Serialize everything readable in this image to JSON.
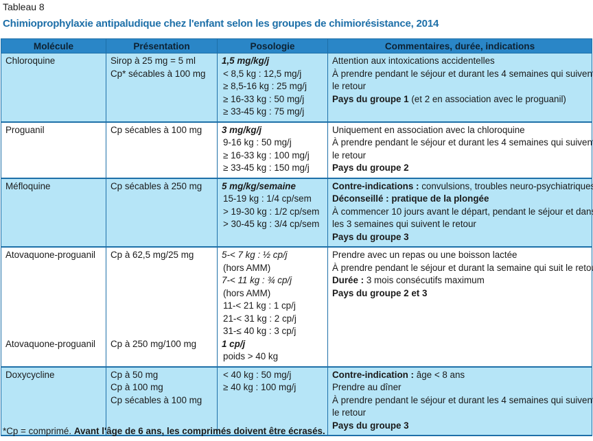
{
  "caption": "Tableau 8",
  "title": "Chimioprophylaxie antipaludique chez l'enfant selon les groupes de chimiorésistance, 2014",
  "headers": [
    "Molécule",
    "Présentation",
    "Posologie",
    "Commentaires, durée, indications"
  ],
  "rows": [
    {
      "molecule": "Chloroquine",
      "presentation": [
        "Sirop à 25 mg = 5 ml",
        "Cp* sécables à 100 mg"
      ],
      "posologie_main": "1,5 mg/kg/j",
      "posologie": [
        "< 8,5 kg : 12,5 mg/j",
        "≥ 8,5-16 kg : 25 mg/j",
        "≥ 16-33 kg : 50 mg/j",
        "≥ 33-45 kg : 75 mg/j"
      ],
      "comments": {
        "c1": "Attention aux intoxications accidentelles",
        "c2": "À prendre pendant le séjour et durant les 4 semaines qui suivent",
        "c3": "le retour",
        "c4_b": "Pays du groupe 1",
        "c4_t": " (et 2 en association avec le proguanil)"
      }
    },
    {
      "molecule": "Proguanil",
      "presentation": [
        "Cp sécables à 100 mg"
      ],
      "posologie_main": "3 mg/kg/j",
      "posologie": [
        "9-16 kg : 50 mg/j",
        "≥ 16-33 kg : 100 mg/j",
        "≥ 33-45 kg : 150 mg/j"
      ],
      "comments": {
        "c1": "Uniquement en association avec la chloroquine",
        "c2": "À prendre pendant le séjour et durant les 4 semaines qui suivent",
        "c3": "le retour",
        "c4_b": "Pays du groupe 2"
      }
    },
    {
      "molecule": "Méfloquine",
      "presentation": [
        "Cp sécables à 250 mg"
      ],
      "posologie_main": "5 mg/kg/semaine",
      "posologie": [
        "15-19 kg : 1/4 cp/sem",
        "> 19-30 kg : 1/2 cp/sem",
        "> 30-45 kg : 3/4 cp/sem"
      ],
      "comments": {
        "c1_b": "Contre-indications :",
        "c1_t": " convulsions, troubles neuro-psychiatriques",
        "c2_b": "Déconseillé : pratique de la plongée",
        "c3": "À commencer 10 jours avant le départ, pendant le séjour et dans",
        "c4": "les 3 semaines qui suivent le retour",
        "c5_b": "Pays du groupe 3"
      }
    },
    {
      "molecule": "Atovaquone-proguanil",
      "molecule2": "Atovaquone-proguanil",
      "presentation": [
        "Cp à 62,5 mg/25 mg"
      ],
      "presentation2": "Cp à 250 mg/100 mg",
      "dose1": "5-< 7 kg : ½ cp/j",
      "amm1": "(hors AMM)",
      "dose2": "7-< 11 kg : ¾ cp/j",
      "amm2": "(hors AMM)",
      "posologie": [
        "11-< 21 kg : 1 cp/j",
        "21-< 31 kg : 2 cp/j",
        "31-≤ 40 kg : 3 cp/j"
      ],
      "dose3": "1 cp/j",
      "dose3_sub": "poids > 40 kg",
      "comments": {
        "c1": "Prendre avec un repas ou une boisson lactée",
        "c2": "À prendre pendant le séjour et durant la semaine qui suit le retour",
        "c3_b": "Durée :",
        "c3_t": " 3 mois consécutifs maximum",
        "c4_b": "Pays du groupe 2 et 3"
      }
    },
    {
      "molecule": "Doxycycline",
      "presentation": [
        "Cp à 50 mg",
        "Cp à 100 mg",
        "Cp sécables à 100 mg"
      ],
      "posologie": [
        "< 40 kg : 50 mg/j",
        "≥ 40 kg : 100 mg/j"
      ],
      "comments": {
        "c1_b": "Contre-indication :",
        "c1_t": " âge < 8 ans",
        "c2": "Prendre au dîner",
        "c3": "À prendre pendant le séjour et durant les 4 semaines qui suivent",
        "c4": "le retour",
        "c5_b": "Pays du groupe 3"
      }
    }
  ],
  "footnote": {
    "normal": "*Cp = comprimé. ",
    "bold": "Avant l'âge de 6 ans, les comprimés doivent être écrasés."
  }
}
